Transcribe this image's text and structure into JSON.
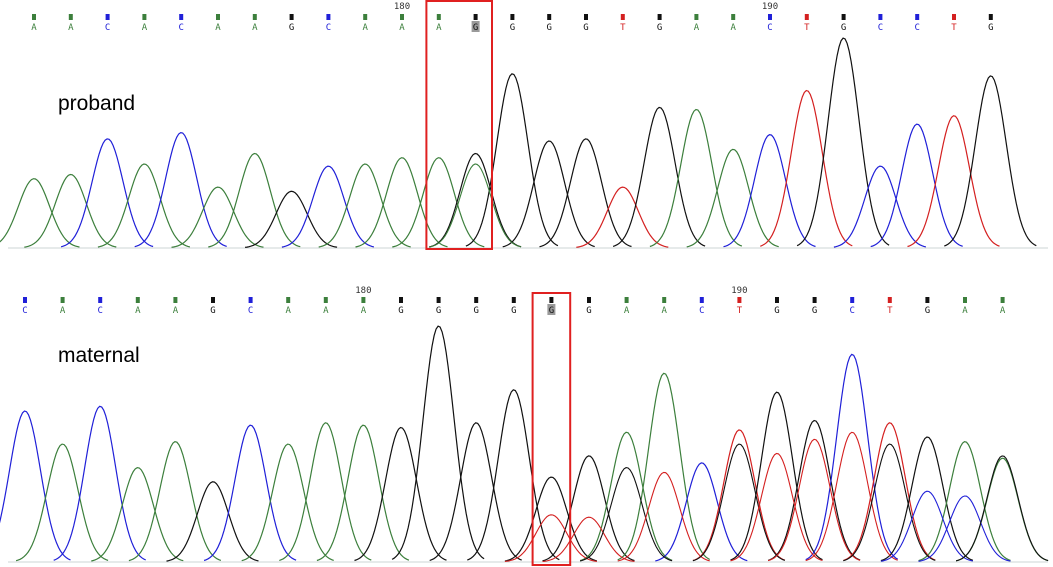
{
  "colors": {
    "A": "#3c7f3c",
    "C": "#2020d8",
    "G": "#111111",
    "T": "#d42020",
    "highlight": "#e02020"
  },
  "tracks": [
    {
      "label": "proband",
      "position_markers": [
        {
          "base_index": 10,
          "label": "180"
        },
        {
          "base_index": 20,
          "label": "190"
        }
      ],
      "bases": [
        "A",
        "A",
        "C",
        "A",
        "C",
        "A",
        "A",
        "G",
        "C",
        "A",
        "A",
        "A",
        "G",
        "G",
        "G",
        "G",
        "T",
        "G",
        "A",
        "A",
        "C",
        "T",
        "G",
        "C",
        "C",
        "T",
        "G"
      ],
      "primary_peaks": [
        0.33,
        0.35,
        0.52,
        0.4,
        0.55,
        0.29,
        0.45,
        0.27,
        0.39,
        0.4,
        0.43,
        0.43,
        0.45,
        0.83,
        0.51,
        0.52,
        0.29,
        0.67,
        0.66,
        0.47,
        0.54,
        0.75,
        1.0,
        0.39,
        0.59,
        0.63,
        0.82
      ],
      "secondary_peaks": [
        {
          "base_index": 12,
          "base": "A",
          "height": 0.4
        }
      ],
      "highlight": {
        "from_base": 11,
        "to_base": 12
      }
    },
    {
      "label": "maternal",
      "position_markers": [
        {
          "base_index": 9,
          "label": "180"
        },
        {
          "base_index": 19,
          "label": "190"
        }
      ],
      "bases": [
        "C",
        "A",
        "C",
        "A",
        "A",
        "G",
        "C",
        "A",
        "A",
        "A",
        "G",
        "G",
        "G",
        "G",
        "G",
        "G",
        "A",
        "A",
        "C",
        "T",
        "G",
        "G",
        "C",
        "T",
        "G",
        "A",
        "A"
      ],
      "primary_peaks": [
        0.64,
        0.5,
        0.66,
        0.4,
        0.51,
        0.34,
        0.58,
        0.5,
        0.59,
        0.58,
        0.57,
        1.0,
        0.59,
        0.73,
        0.36,
        0.45,
        0.55,
        0.8,
        0.42,
        0.56,
        0.72,
        0.6,
        0.88,
        0.59,
        0.53,
        0.51,
        0.44
      ],
      "secondary_peaks": [
        {
          "base_index": 14,
          "base": "T",
          "height": 0.2
        },
        {
          "base_index": 15,
          "base": "T",
          "height": 0.19
        },
        {
          "base_index": 16,
          "base": "G",
          "height": 0.4
        },
        {
          "base_index": 17,
          "base": "T",
          "height": 0.38
        },
        {
          "base_index": 19,
          "base": "G",
          "height": 0.5
        },
        {
          "base_index": 20,
          "base": "T",
          "height": 0.46
        },
        {
          "base_index": 21,
          "base": "T",
          "height": 0.52
        },
        {
          "base_index": 22,
          "base": "T",
          "height": 0.55
        },
        {
          "base_index": 23,
          "base": "G",
          "height": 0.5
        },
        {
          "base_index": 24,
          "base": "C",
          "height": 0.3
        },
        {
          "base_index": 25,
          "base": "C",
          "height": 0.28
        },
        {
          "base_index": 26,
          "base": "G",
          "height": 0.45
        }
      ],
      "highlight": {
        "from_base": 14,
        "to_base": 14
      }
    }
  ]
}
